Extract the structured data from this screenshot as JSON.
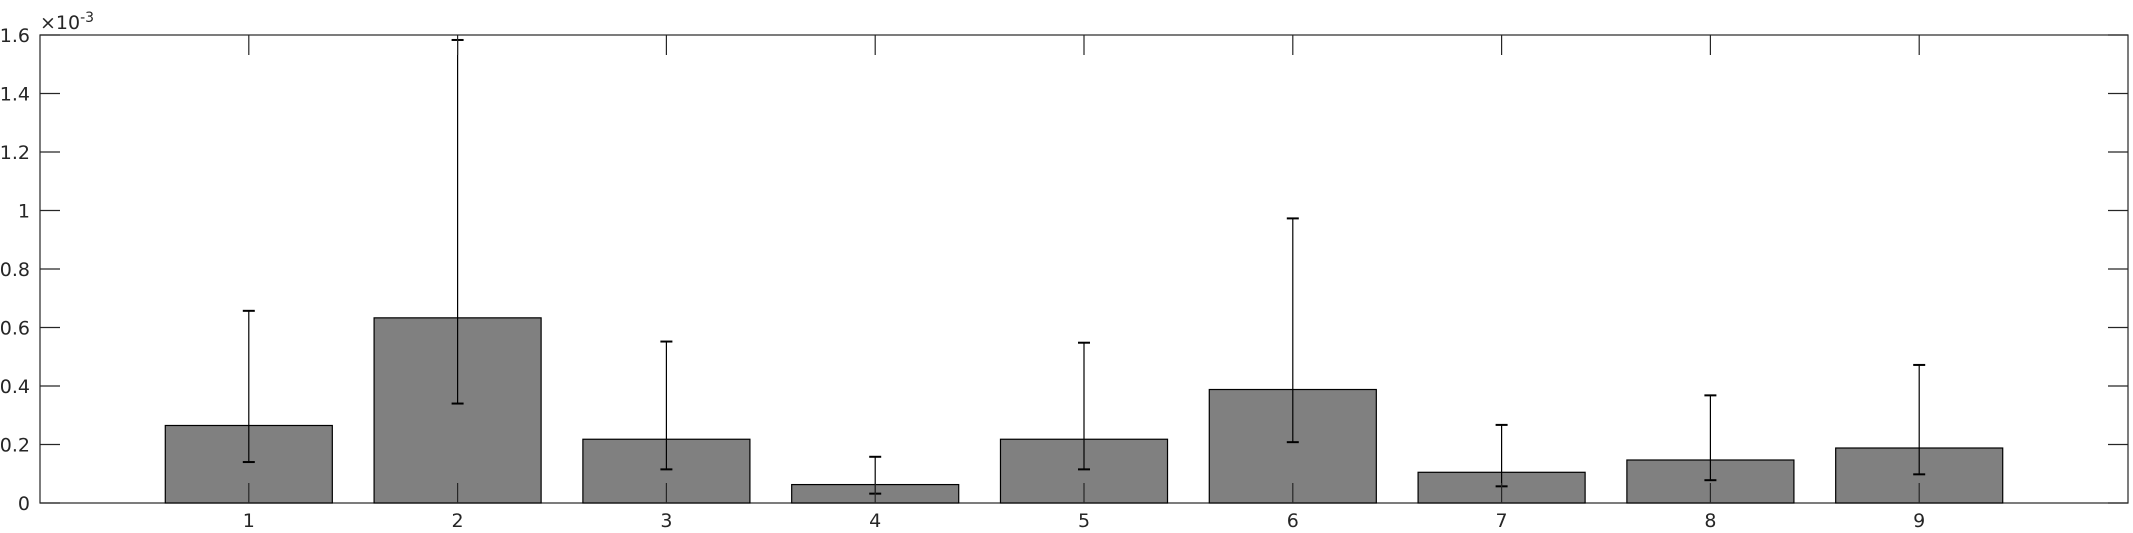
{
  "chart_data": {
    "type": "bar",
    "categories": [
      "1",
      "2",
      "3",
      "4",
      "5",
      "6",
      "7",
      "8",
      "9"
    ],
    "values": [
      0.000265,
      0.000633,
      0.000218,
      6.3e-05,
      0.000218,
      0.000388,
      0.000105,
      0.000147,
      0.000188
    ],
    "error_lower": [
      0.00014,
      0.00034,
      0.000115,
      3.2e-05,
      0.000115,
      0.000208,
      5.7e-05,
      7.8e-05,
      9.8e-05
    ],
    "error_upper": [
      0.000657,
      0.001583,
      0.000552,
      0.000158,
      0.000548,
      0.000973,
      0.000267,
      0.000368,
      0.000472
    ],
    "ylim": [
      0,
      0.0016
    ],
    "xlim": [
      0,
      10
    ],
    "yticks": [
      "0",
      "0.2",
      "0.4",
      "0.6",
      "0.8",
      "1",
      "1.2",
      "1.4",
      "1.6"
    ],
    "y_exponent_prefix": "×10",
    "y_exponent": "-3",
    "bar_color": "#808080",
    "edge_color": "#000000",
    "grid": false,
    "box": true
  }
}
